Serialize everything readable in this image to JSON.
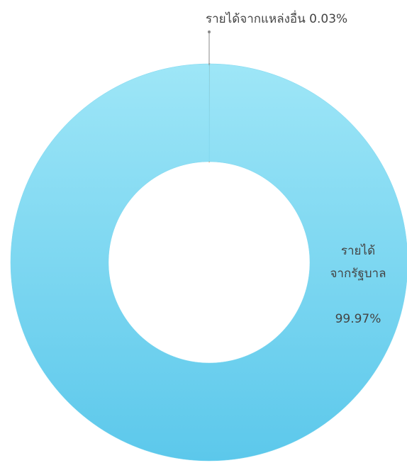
{
  "chart_data": {
    "type": "donut",
    "categories": [
      "รายได้จากแหล่งอื่น",
      "รายได้\nจากรัฐบาล"
    ],
    "values": [
      0.03,
      99.97
    ],
    "value_labels": [
      "0.03%",
      "99.97%"
    ],
    "colors": [
      "#e07b39",
      "#7fd8f0"
    ]
  }
}
